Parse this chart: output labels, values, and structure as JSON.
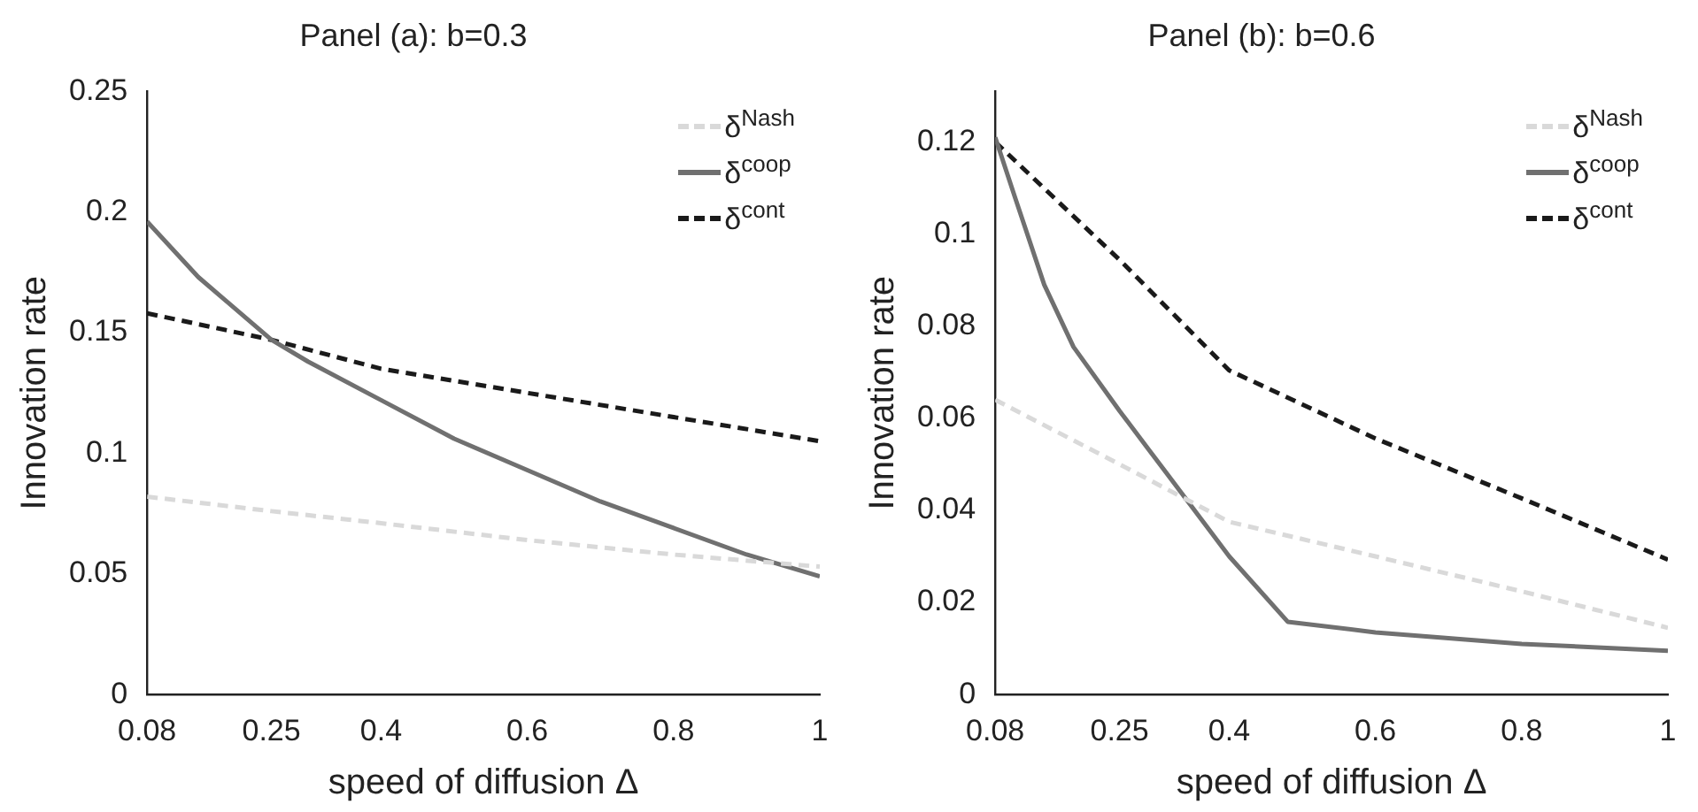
{
  "chart_data": [
    {
      "type": "line",
      "title": "Panel (a): b=0.3",
      "xlabel": "speed of diffusion Δ",
      "ylabel": "Innovation rate",
      "xlim": [
        0.08,
        1
      ],
      "xticks": [
        0.08,
        0.25,
        0.4,
        0.6,
        0.8,
        1
      ],
      "ylim": [
        0,
        0.25
      ],
      "yticks": [
        0,
        0.05,
        0.1,
        0.15,
        0.2,
        0.25
      ],
      "grid": false,
      "legend": "top right",
      "marker": "none",
      "series": [
        {
          "name": "δ$^{Nash}$",
          "color": "#d9d9d9",
          "line_style": "dashed",
          "x": [
            0.08,
            0.25,
            0.4,
            0.6,
            0.8,
            1
          ],
          "values": [
            0.082,
            0.076,
            0.071,
            0.064,
            0.058,
            0.053
          ]
        },
        {
          "name": "δ$^{coop}$",
          "color": "#707070",
          "line_style": "solid",
          "x": [
            0.08,
            0.15,
            0.25,
            0.3,
            0.4,
            0.5,
            0.6,
            0.7,
            0.8,
            0.9,
            1
          ],
          "values": [
            0.196,
            0.173,
            0.147,
            0.138,
            0.122,
            0.106,
            0.093,
            0.08,
            0.069,
            0.058,
            0.049
          ]
        },
        {
          "name": "δ$^{cont}$",
          "color": "#1a1a1a",
          "line_style": "dashed",
          "x": [
            0.08,
            0.25,
            0.4,
            0.6,
            0.8,
            1
          ],
          "values": [
            0.158,
            0.147,
            0.135,
            0.125,
            0.115,
            0.105
          ]
        }
      ]
    },
    {
      "type": "line",
      "title": "Panel (b): b=0.6",
      "xlabel": "speed of diffusion Δ",
      "ylabel": "Innovation rate",
      "xlim": [
        0.08,
        1
      ],
      "xticks": [
        0.08,
        0.25,
        0.4,
        0.6,
        0.8,
        1
      ],
      "ylim": [
        0,
        0.131
      ],
      "yticks": [
        0,
        0.02,
        0.04,
        0.06,
        0.08,
        0.1,
        0.12
      ],
      "grid": false,
      "legend": "top right",
      "marker": "none",
      "series": [
        {
          "name": "δ$^{Nash}$",
          "color": "#d9d9d9",
          "line_style": "dashed",
          "x": [
            0.08,
            0.25,
            0.4,
            0.6,
            0.8,
            1
          ],
          "values": [
            0.064,
            0.05,
            0.0375,
            0.03,
            0.0224,
            0.0145
          ]
        },
        {
          "name": "δ$^{coop}$",
          "color": "#707070",
          "line_style": "solid",
          "x": [
            0.08,
            0.107,
            0.147,
            0.187,
            0.25,
            0.316,
            0.4,
            0.48,
            0.6,
            0.8,
            1
          ],
          "values": [
            0.121,
            0.108,
            0.089,
            0.0755,
            0.0616,
            0.0477,
            0.03,
            0.0158,
            0.0135,
            0.011,
            0.0095
          ]
        },
        {
          "name": "δ$^{cont}$",
          "color": "#1a1a1a",
          "line_style": "dashed",
          "x": [
            0.08,
            0.25,
            0.4,
            0.6,
            0.8,
            1
          ],
          "values": [
            0.12,
            0.0944,
            0.0704,
            0.0556,
            0.0426,
            0.0293
          ]
        }
      ]
    }
  ]
}
